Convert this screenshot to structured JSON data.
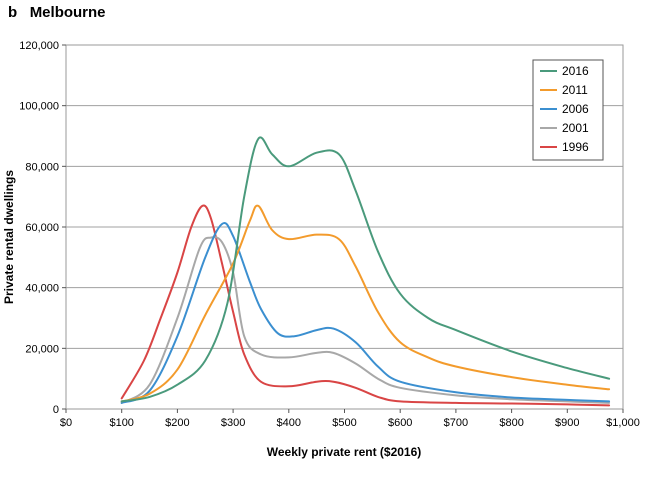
{
  "panel": {
    "label": "b",
    "title": "Melbourne"
  },
  "chart_data": {
    "type": "line",
    "title": "b   Melbourne",
    "xlabel": "Weekly private rent ($2016)",
    "ylabel": "Private rental dwellings",
    "xlim": [
      0,
      1000
    ],
    "ylim": [
      0,
      120000
    ],
    "x_ticks": [
      0,
      100,
      200,
      300,
      400,
      500,
      600,
      700,
      800,
      900,
      1000
    ],
    "x_tick_labels": [
      "$0",
      "$100",
      "$200",
      "$300",
      "$400",
      "$500",
      "$600",
      "$700",
      "$800",
      "$900",
      "$1,000"
    ],
    "y_ticks": [
      0,
      20000,
      40000,
      60000,
      80000,
      100000,
      120000
    ],
    "y_tick_labels": [
      "0",
      "20,000",
      "40,000",
      "60,000",
      "80,000",
      "100,000",
      "120,000"
    ],
    "grid": "horizontal",
    "legend_position": "top-right",
    "series": [
      {
        "name": "2016",
        "color": "#4a9a7c",
        "x": [
          100,
          150,
          200,
          250,
          290,
          320,
          345,
          370,
          400,
          450,
          490,
          520,
          560,
          600,
          650,
          700,
          800,
          900,
          975
        ],
        "y": [
          2500,
          4000,
          8000,
          16000,
          35000,
          70000,
          89000,
          84000,
          80000,
          84500,
          84000,
          72000,
          52000,
          38000,
          30000,
          26000,
          19000,
          13500,
          10000
        ]
      },
      {
        "name": "2011",
        "color": "#f39b2c",
        "x": [
          100,
          150,
          200,
          250,
          300,
          330,
          345,
          370,
          400,
          450,
          490,
          520,
          560,
          600,
          650,
          700,
          800,
          900,
          975
        ],
        "y": [
          2500,
          5000,
          13000,
          31000,
          48000,
          62000,
          67000,
          59000,
          56000,
          57500,
          56000,
          47000,
          32000,
          22000,
          17000,
          14000,
          10500,
          8000,
          6500
        ]
      },
      {
        "name": "2006",
        "color": "#3b8fd0",
        "x": [
          100,
          150,
          200,
          250,
          280,
          300,
          330,
          350,
          380,
          410,
          450,
          480,
          520,
          560,
          600,
          700,
          800,
          900,
          975
        ],
        "y": [
          2000,
          6000,
          24000,
          50000,
          61000,
          57000,
          42000,
          33000,
          25000,
          24000,
          26000,
          26500,
          22000,
          14000,
          9000,
          5500,
          3800,
          3000,
          2500
        ]
      },
      {
        "name": "2001",
        "color": "#a8a8a8",
        "x": [
          100,
          150,
          200,
          240,
          260,
          280,
          300,
          320,
          350,
          400,
          450,
          480,
          520,
          560,
          600,
          700,
          800,
          900,
          975
        ],
        "y": [
          2000,
          8000,
          30000,
          53000,
          56500,
          55000,
          45000,
          24000,
          18000,
          17000,
          18500,
          18500,
          15000,
          10000,
          7000,
          4500,
          3200,
          2500,
          2000
        ]
      },
      {
        "name": "1996",
        "color": "#d94545",
        "x": [
          100,
          140,
          170,
          200,
          225,
          245,
          260,
          280,
          300,
          320,
          350,
          400,
          450,
          480,
          520,
          560,
          600,
          700,
          800,
          900,
          975
        ],
        "y": [
          3500,
          16000,
          30000,
          45000,
          60000,
          67000,
          63000,
          48000,
          32000,
          18000,
          9000,
          7500,
          9000,
          9000,
          7000,
          4000,
          2500,
          2000,
          1800,
          1500,
          1200
        ]
      }
    ]
  }
}
